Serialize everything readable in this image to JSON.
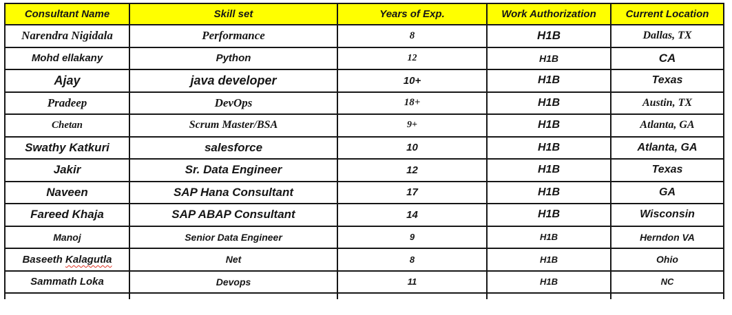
{
  "colors": {
    "header_bg": "#FFFF00",
    "header_text": "#161616",
    "body_text": "#161616",
    "border": "#161616",
    "spellcheck_squiggle": "#E03020",
    "page_bg": "#FFFFFF"
  },
  "table": {
    "columns": [
      {
        "key": "name",
        "label": "Consultant Name"
      },
      {
        "key": "skill",
        "label": "Skill set"
      },
      {
        "key": "exp",
        "label": "Years of Exp."
      },
      {
        "key": "auth",
        "label": "Work Authorization"
      },
      {
        "key": "location",
        "label": "Current Location"
      }
    ],
    "rows": [
      {
        "cells": [
          {
            "t": "Narendra Nigidala",
            "c": "serif s17"
          },
          {
            "t": "Performance",
            "c": "serif s17"
          },
          {
            "t": "8",
            "c": "serif s15"
          },
          {
            "t": "H1B",
            "c": "sans s17"
          },
          {
            "t": "Dallas, TX",
            "c": "serif s16"
          }
        ]
      },
      {
        "cells": [
          {
            "t": "Mohd ellakany",
            "c": "sans s15"
          },
          {
            "t": "Python",
            "c": "sans s15"
          },
          {
            "t": "12",
            "c": "serif s14"
          },
          {
            "t": "H1B",
            "c": "sans s14"
          },
          {
            "t": "CA",
            "c": "sans s17"
          }
        ]
      },
      {
        "cells": [
          {
            "t": "Ajay",
            "c": "sans s18"
          },
          {
            "t": "java developer",
            "c": "sans s18"
          },
          {
            "t": "10+",
            "c": "sans s15"
          },
          {
            "t": "H1B",
            "c": "sans s16"
          },
          {
            "t": "Texas",
            "c": "sans s16"
          }
        ]
      },
      {
        "cells": [
          {
            "t": "Pradeep",
            "c": "serif s17"
          },
          {
            "t": "DevOps",
            "c": "serif s17"
          },
          {
            "t": "18+",
            "c": "serif s15"
          },
          {
            "t": "H1B",
            "c": "sans s16"
          },
          {
            "t": "Austin, TX",
            "c": "serif s16"
          }
        ]
      },
      {
        "cells": [
          {
            "t": "Chetan",
            "c": "serif s15"
          },
          {
            "t": "Scrum Master/BSA",
            "c": "serif s16"
          },
          {
            "t": "9+",
            "c": "serif s14"
          },
          {
            "t": "H1B",
            "c": "sans s16"
          },
          {
            "t": "Atlanta, GA",
            "c": "serif s16"
          }
        ]
      },
      {
        "cells": [
          {
            "t": "Swathy Katkuri",
            "c": "sans s17"
          },
          {
            "t": "salesforce",
            "c": "sans s17"
          },
          {
            "t": "10",
            "c": "sans s15"
          },
          {
            "t": "H1B",
            "c": "sans s16"
          },
          {
            "t": "Atlanta, GA",
            "c": "sans s16"
          }
        ]
      },
      {
        "cells": [
          {
            "t": "Jakir",
            "c": "sans s17"
          },
          {
            "t": "Sr. Data Engineer",
            "c": "sans s17"
          },
          {
            "t": "12",
            "c": "sans s15"
          },
          {
            "t": "H1B",
            "c": "sans s16"
          },
          {
            "t": "Texas",
            "c": "sans s16"
          }
        ]
      },
      {
        "cells": [
          {
            "t": "Naveen",
            "c": "sans s17"
          },
          {
            "t": "SAP Hana Consultant",
            "c": "sans s17"
          },
          {
            "t": "17",
            "c": "sans s15"
          },
          {
            "t": "H1B",
            "c": "sans s16"
          },
          {
            "t": "GA",
            "c": "sans s16"
          }
        ]
      },
      {
        "cells": [
          {
            "t": "Fareed Khaja",
            "c": "sans s17"
          },
          {
            "t": "SAP ABAP Consultant",
            "c": "sans s17"
          },
          {
            "t": "14",
            "c": "sans s15"
          },
          {
            "t": "H1B",
            "c": "sans s16"
          },
          {
            "t": "Wisconsin",
            "c": "sans s16"
          }
        ]
      },
      {
        "cells": [
          {
            "t": "Manoj",
            "c": "sans s14"
          },
          {
            "t": "Senior Data Engineer",
            "c": "sans s14"
          },
          {
            "t": "9",
            "c": "sans s13"
          },
          {
            "t": "H1B",
            "c": "sans s13"
          },
          {
            "t": "Herndon VA",
            "c": "sans s14"
          }
        ]
      },
      {
        "cells": [
          {
            "t": "Baseeth Kalagutla",
            "c": "sans s15",
            "parts": [
              {
                "t": "Baseeth ",
                "c": ""
              },
              {
                "t": "Kalagutla",
                "c": "squiggle"
              }
            ]
          },
          {
            "t": "Net",
            "c": "sans s14"
          },
          {
            "t": "8",
            "c": "sans s13"
          },
          {
            "t": "H1B",
            "c": "sans s13"
          },
          {
            "t": "Ohio",
            "c": "sans s14"
          }
        ]
      },
      {
        "cells": [
          {
            "t": "Sammath Loka",
            "c": "sans s15"
          },
          {
            "t": "Devops",
            "c": "sans s14"
          },
          {
            "t": "11",
            "c": "sans s13"
          },
          {
            "t": "H1B",
            "c": "sans s13"
          },
          {
            "t": "NC",
            "c": "sans s13"
          }
        ]
      }
    ]
  }
}
